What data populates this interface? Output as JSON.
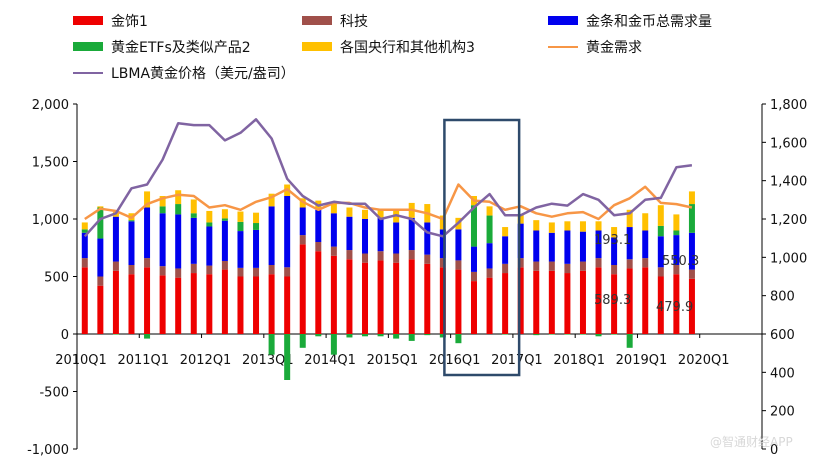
{
  "chart_data": {
    "type": "bar",
    "title": "",
    "xlabel": "",
    "ylabel": "",
    "ylim": [
      -1000,
      2000
    ],
    "y2lim": [
      0,
      1800
    ],
    "yticks": [
      "2,000",
      "1,500",
      "1,000",
      "500",
      "0",
      "-500",
      "-1,000"
    ],
    "y2ticks": [
      "1,800",
      "1,600",
      "1,400",
      "1,200",
      "1,000",
      "800",
      "600",
      "400",
      "200",
      "0"
    ],
    "xticks": [
      "2010Q1",
      "2011Q1",
      "2012Q1",
      "2013Q1",
      "2014Q1",
      "2015Q1",
      "2016Q1",
      "2017Q1",
      "2018Q1",
      "2019Q1",
      "2020Q1"
    ],
    "categories": [
      "2010Q1",
      "2010Q2",
      "2010Q3",
      "2010Q4",
      "2011Q1",
      "2011Q2",
      "2011Q3",
      "2011Q4",
      "2012Q1",
      "2012Q2",
      "2012Q3",
      "2012Q4",
      "2013Q1",
      "2013Q2",
      "2013Q3",
      "2013Q4",
      "2014Q1",
      "2014Q2",
      "2014Q3",
      "2014Q4",
      "2015Q1",
      "2015Q2",
      "2015Q3",
      "2015Q4",
      "2016Q1",
      "2016Q2",
      "2016Q3",
      "2016Q4",
      "2017Q1",
      "2017Q2",
      "2017Q3",
      "2017Q4",
      "2018Q1",
      "2018Q2",
      "2018Q3",
      "2018Q4",
      "2019Q1",
      "2019Q2",
      "2019Q3",
      "2019Q4"
    ],
    "series": [
      {
        "name": "金饰1",
        "type": "bar",
        "color": "#ee0000",
        "values": [
          580,
          420,
          550,
          520,
          580,
          510,
          490,
          530,
          520,
          560,
          500,
          500,
          520,
          500,
          780,
          720,
          680,
          650,
          620,
          640,
          620,
          650,
          610,
          580,
          560,
          460,
          490,
          530,
          580,
          550,
          550,
          530,
          550,
          580,
          520,
          570,
          580,
          500,
          520,
          480
        ]
      },
      {
        "name": "科技",
        "type": "bar",
        "color": "#a0504a",
        "values": [
          80,
          80,
          80,
          80,
          80,
          80,
          80,
          80,
          75,
          75,
          75,
          75,
          80,
          80,
          80,
          80,
          80,
          80,
          80,
          80,
          80,
          80,
          80,
          80,
          80,
          80,
          80,
          80,
          80,
          80,
          80,
          80,
          80,
          80,
          80,
          80,
          80,
          80,
          80,
          80
        ]
      },
      {
        "name": "金条和金币总需求量",
        "type": "bar",
        "color": "#0000ee",
        "values": [
          220,
          330,
          390,
          380,
          440,
          460,
          470,
          400,
          340,
          350,
          320,
          330,
          510,
          620,
          240,
          280,
          290,
          290,
          300,
          290,
          270,
          280,
          280,
          250,
          270,
          220,
          220,
          240,
          300,
          270,
          250,
          290,
          260,
          240,
          240,
          280,
          240,
          270,
          260,
          320
        ]
      },
      {
        "name": "黄金ETFs及类似产品2",
        "type": "bar",
        "color": "#1aaa3a",
        "values": [
          30,
          270,
          -5,
          10,
          -40,
          60,
          90,
          40,
          35,
          20,
          80,
          60,
          -180,
          -400,
          -120,
          -20,
          -180,
          -30,
          -20,
          -20,
          -40,
          -60,
          -10,
          -30,
          -80,
          360,
          240,
          -5,
          0,
          -10,
          -5,
          -5,
          -5,
          -20,
          -5,
          -120,
          0,
          90,
          40,
          250
        ]
      },
      {
        "name": "各国央行和其他机构3",
        "type": "bar",
        "color": "#ffc000",
        "values": [
          60,
          10,
          40,
          60,
          140,
          90,
          120,
          120,
          100,
          80,
          90,
          90,
          110,
          100,
          80,
          80,
          100,
          80,
          80,
          80,
          120,
          130,
          160,
          120,
          100,
          80,
          80,
          80,
          80,
          90,
          90,
          80,
          90,
          80,
          90,
          150,
          150,
          180,
          140,
          110
        ]
      },
      {
        "name": "黄金需求",
        "type": "line",
        "axis": "left",
        "color": "#f79646",
        "values": [
          1000,
          1090,
          1070,
          1010,
          1130,
          1180,
          1210,
          1200,
          1100,
          1120,
          1080,
          1150,
          1190,
          1260,
          1150,
          1080,
          1140,
          1140,
          1100,
          1080,
          1080,
          1080,
          1050,
          1000,
          1300,
          1160,
          1150,
          1080,
          1110,
          1050,
          1020,
          1050,
          1060,
          1000,
          1120,
          1180,
          1280,
          1140,
          1130,
          1100
        ]
      },
      {
        "name": "LBMA黄金价格（美元/盎司）",
        "type": "line",
        "axis": "right",
        "color": "#8064a2",
        "values": [
          1110,
          1200,
          1230,
          1360,
          1380,
          1510,
          1700,
          1690,
          1690,
          1610,
          1650,
          1720,
          1620,
          1410,
          1320,
          1270,
          1290,
          1280,
          1280,
          1200,
          1220,
          1200,
          1130,
          1110,
          1180,
          1260,
          1330,
          1220,
          1220,
          1260,
          1280,
          1270,
          1330,
          1300,
          1220,
          1230,
          1300,
          1310,
          1470,
          1480
        ]
      }
    ],
    "annotations": [
      "193.1",
      "550.3",
      "589.3",
      "479.9"
    ],
    "highlight_box": {
      "from_category": "2016Q1",
      "to_category": "2016Q4"
    },
    "legend_position": "top"
  },
  "watermark": "@智通财经APP",
  "colors": {
    "box": "#2e4a6b",
    "axis": "#000000"
  }
}
